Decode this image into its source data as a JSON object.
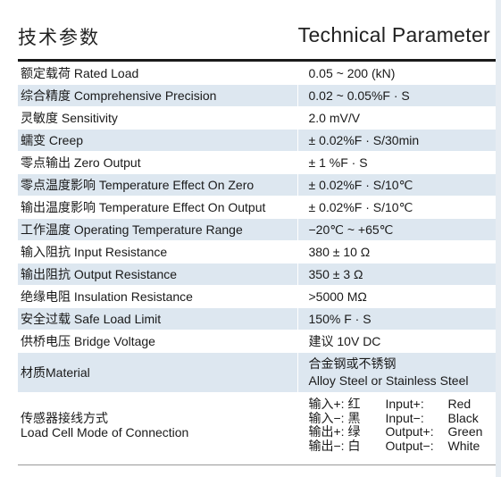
{
  "header": {
    "title_cn": "技术参数",
    "title_en": "Technical Parameter"
  },
  "rows": [
    {
      "label": "额定载荷 Rated Load",
      "value": "0.05 ~ 200 (kN)"
    },
    {
      "label": "综合精度 Comprehensive Precision",
      "value": "0.02 ~ 0.05%F · S"
    },
    {
      "label": "灵敏度 Sensitivity",
      "value": "2.0 mV/V"
    },
    {
      "label": "蠕变 Creep",
      "value": "± 0.02%F · S/30min"
    },
    {
      "label": "零点输出 Zero Output",
      "value": "± 1 %F · S"
    },
    {
      "label": "零点温度影响 Temperature Effect On Zero",
      "value": "± 0.02%F · S/10℃"
    },
    {
      "label": "输出温度影响 Temperature Effect On Output",
      "value": "± 0.02%F · S/10℃"
    },
    {
      "label": "工作温度 Operating Temperature Range",
      "value": "−20℃ ~ +65℃"
    },
    {
      "label": "输入阻抗 Input Resistance",
      "value": "380 ± 10 Ω"
    },
    {
      "label": "输出阻抗 Output Resistance",
      "value": "350 ± 3 Ω"
    },
    {
      "label": "绝缘电阻 Insulation Resistance",
      "value": ">5000 MΩ"
    },
    {
      "label": "安全过载 Safe Load Limit",
      "value": "150% F · S"
    },
    {
      "label": "供桥电压 Bridge Voltage",
      "value": "建议 10V DC"
    }
  ],
  "material": {
    "label": "材质Material",
    "value_cn": "合金钢或不锈钢",
    "value_en": "Alloy Steel or Stainless Steel"
  },
  "connection": {
    "label_cn": "传感器接线方式",
    "label_en": "Load Cell Mode of Connection",
    "wires": [
      {
        "cn": "输入+:  红",
        "en": "Input+:",
        "color": "Red"
      },
      {
        "cn": "输入−:  黑",
        "en": "Input−:",
        "color": "Black"
      },
      {
        "cn": "输出+:  绿",
        "en": "Output+:",
        "color": "Green"
      },
      {
        "cn": "输出−:  白",
        "en": "Output−:",
        "color": "White"
      }
    ]
  },
  "colors": {
    "stripe": "#dde7f0",
    "rule": "#1a1a1a"
  }
}
